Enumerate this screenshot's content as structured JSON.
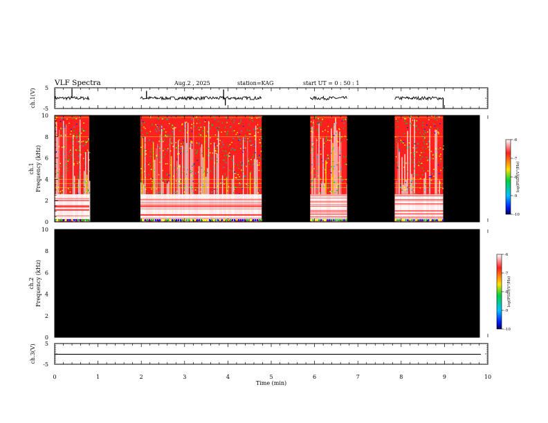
{
  "header": {
    "title": "VLF Spectra",
    "date": "Aug.2  , 2025",
    "station": "station=KAG",
    "start_ut": "start  UT  =   0  : 50 : 1"
  },
  "colors": {
    "background": "#000000",
    "saturated": "#ffffff",
    "high": "#ff2020",
    "mid": "#ffff00",
    "low": "#00cc33",
    "lowest": "#0020ff"
  },
  "chart_data": [
    {
      "type": "line",
      "panel": "ch1-waveform",
      "ylabel": "ch.1(V)",
      "ylim": [
        -5,
        5
      ],
      "yticks": [
        "5",
        "-5"
      ],
      "baseline": 0,
      "active_segments_min": [
        [
          0,
          0.8
        ],
        [
          1.98,
          4.78
        ],
        [
          5.9,
          6.75
        ],
        [
          7.85,
          8.97
        ]
      ],
      "spikes": [
        {
          "t": 0.4,
          "v": 4.5
        },
        {
          "t": 2.12,
          "v": 3.5
        },
        {
          "t": 3.9,
          "v": 4.2
        },
        {
          "t": 3.94,
          "v": -3.5
        },
        {
          "t": 8.97,
          "v": -4.8
        }
      ]
    },
    {
      "type": "heatmap",
      "panel": "ch1-spectrogram",
      "ylabel": "ch.1\nFrequency (kHz)",
      "ylabel_line1": "ch.1",
      "ylabel_line2": "Frequency  (kHz)",
      "yticks": [
        "0",
        "2",
        "4",
        "6",
        "8",
        "10"
      ],
      "ylim": [
        0,
        10
      ],
      "data_segments_min": [
        [
          0,
          0.8
        ],
        [
          1.98,
          4.78
        ],
        [
          5.9,
          6.75
        ],
        [
          7.85,
          8.97
        ]
      ],
      "strong_band_khz": [
        0.2,
        2.6
      ],
      "colorbar": {
        "label": "log(PSD)(V²/Hz)",
        "ticks": [
          "-6",
          "-7",
          "-8",
          "-9",
          "-10"
        ],
        "range": [
          -10,
          -6
        ]
      }
    },
    {
      "type": "heatmap",
      "panel": "ch2-spectrogram",
      "ylabel": "ch.2\nFrequency (kHz)",
      "ylabel_line1": "ch.2",
      "ylabel_line2": "Frequency  (kHz)",
      "yticks": [
        "0",
        "2",
        "4",
        "6",
        "8",
        "10"
      ],
      "ylim": [
        0,
        10
      ],
      "data_segments_min": [],
      "colorbar": {
        "label": "log(PSD)(V²/Hz)",
        "ticks": [
          "-6",
          "-7",
          "-8",
          "-9",
          "-10"
        ],
        "range": [
          -10,
          -6
        ]
      }
    },
    {
      "type": "line",
      "panel": "ch3-waveform",
      "ylabel": "ch.3(V)",
      "ylim": [
        -5,
        5
      ],
      "yticks": [
        "5",
        "-5"
      ],
      "baseline": -0.2,
      "active_segments_min": [
        [
          0,
          9.85
        ]
      ]
    }
  ],
  "xaxis": {
    "label": "Time  (min)",
    "ticks": [
      "0",
      "1",
      "2",
      "3",
      "4",
      "5",
      "6",
      "7",
      "8",
      "9",
      "10"
    ],
    "range": [
      0,
      10
    ],
    "data_end_min": 9.85
  }
}
